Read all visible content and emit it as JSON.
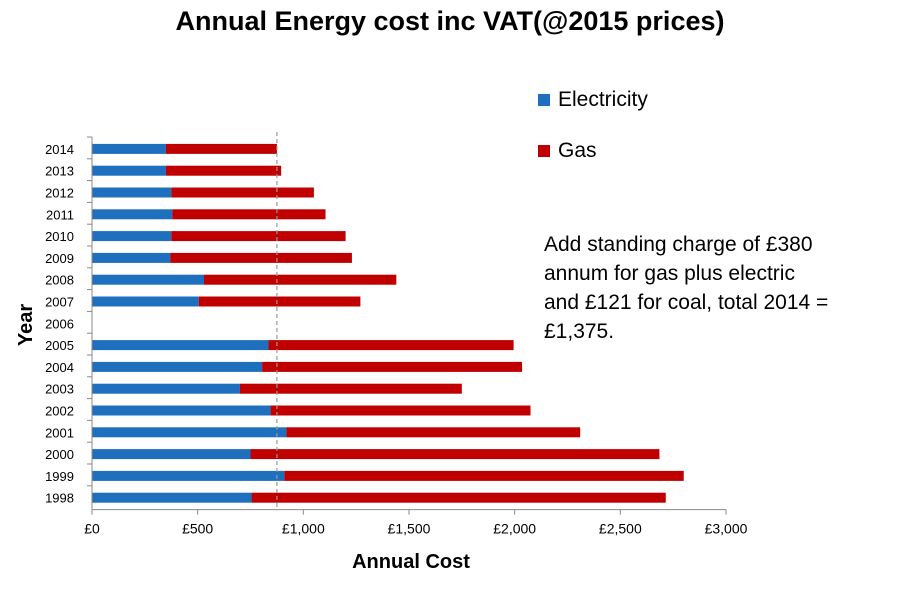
{
  "chart_data": {
    "type": "bar",
    "orientation": "horizontal",
    "stacked": true,
    "title": "Annual Energy cost inc VAT(@2015 prices)",
    "xlabel": "Annual Cost",
    "ylabel": "Year",
    "xlim": [
      0,
      3000
    ],
    "xticks": [
      "£0",
      "£500",
      "£1,000",
      "£1,500",
      "£2,000",
      "£2,500",
      "£3,000"
    ],
    "xtick_values": [
      0,
      500,
      1000,
      1500,
      2000,
      2500,
      3000
    ],
    "categories": [
      "2014",
      "2013",
      "2012",
      "2011",
      "2010",
      "2009",
      "2008",
      "2007",
      "2006",
      "2005",
      "2004",
      "2003",
      "2002",
      "2001",
      "2000",
      "1999",
      "1998"
    ],
    "series": [
      {
        "name": "Electricity",
        "color": "#1f6fbf",
        "values": [
          350,
          350,
          375,
          380,
          375,
          370,
          530,
          505,
          null,
          835,
          805,
          700,
          845,
          920,
          750,
          910,
          755
        ]
      },
      {
        "name": "Gas",
        "color": "#c00000",
        "values": [
          525,
          545,
          675,
          725,
          825,
          860,
          910,
          765,
          null,
          1160,
          1230,
          1050,
          1230,
          1390,
          1935,
          1890,
          1960
        ]
      }
    ],
    "reference_line": {
      "value": 875,
      "style": "dashed"
    },
    "legend_position": "top-right",
    "grid": false,
    "annotation": "Add standing charge of £380 annum for gas plus electric and £121 for coal, total 2014 = £1,375."
  }
}
